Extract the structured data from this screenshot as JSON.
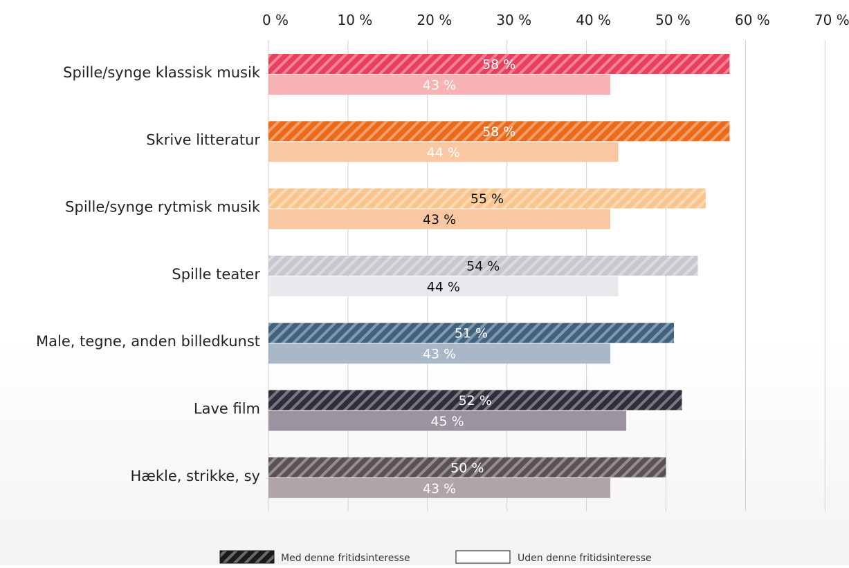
{
  "chart_data": {
    "type": "bar",
    "orientation": "horizontal",
    "xlim": [
      0,
      70
    ],
    "x_ticks": [
      0,
      10,
      20,
      30,
      40,
      50,
      60,
      70
    ],
    "x_tick_labels": [
      "0 %",
      "10 %",
      "20 %",
      "30 %",
      "40 %",
      "50 %",
      "60 %",
      "70 %"
    ],
    "grid": true,
    "legend_position": "bottom",
    "categories": [
      "Spille/synge klassisk musik",
      "Skrive litteratur",
      "Spille/synge rytmisk musik",
      "Spille teater",
      "Male, tegne, anden billedkunst",
      "Lave film",
      "Hækle, strikke, sy"
    ],
    "series": [
      {
        "name": "Med denne fritidsinteresse",
        "pattern": "hatched",
        "values": [
          58,
          58,
          55,
          54,
          51,
          52,
          50
        ],
        "labels": [
          "58 %",
          "58 %",
          "55 %",
          "54 %",
          "51 %",
          "52 %",
          "50 %"
        ],
        "colors": [
          "#e8405c",
          "#ea6a1a",
          "#f9c48d",
          "#c8c6cf",
          "#41627f",
          "#2f2d3b",
          "#5b5052"
        ],
        "label_colors": [
          "#ffffff",
          "#ffffff",
          "#111111",
          "#111111",
          "#ffffff",
          "#ffffff",
          "#ffffff"
        ]
      },
      {
        "name": "Uden denne fritidsinteresse",
        "pattern": "solid",
        "values": [
          43,
          44,
          43,
          44,
          43,
          45,
          43
        ],
        "labels": [
          "43 %",
          "44 %",
          "43 %",
          "44 %",
          "43 %",
          "45 %",
          "43 %"
        ],
        "colors": [
          "#f7b3b4",
          "#f9c7a2",
          "#f9c8a2",
          "#e9e8ec",
          "#a8b8c8",
          "#9b939f",
          "#b1a5a8"
        ],
        "label_colors": [
          "#ffffff",
          "#ffffff",
          "#111111",
          "#111111",
          "#ffffff",
          "#ffffff",
          "#ffffff"
        ]
      }
    ]
  }
}
